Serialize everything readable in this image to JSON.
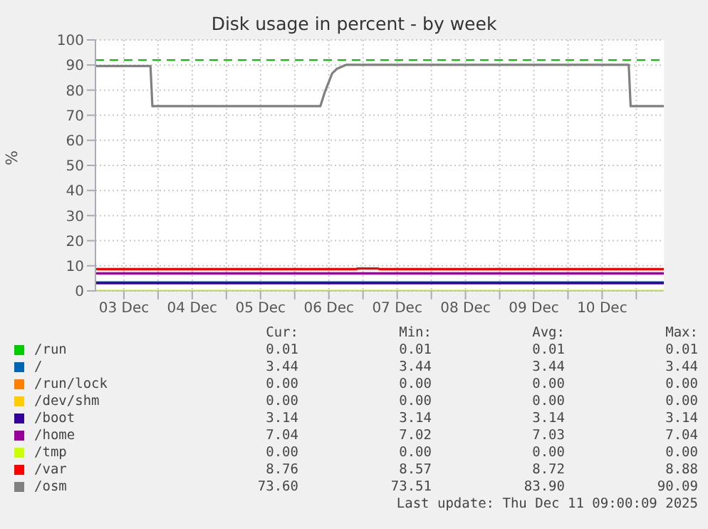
{
  "chart_data": {
    "type": "line",
    "title": "Disk usage in percent - by week",
    "ylabel": "%",
    "xlim": [
      "2025-12-03T02:00",
      "2025-12-11T09:40"
    ],
    "xticks": [
      {
        "value": "2025-12-03T12:00",
        "label": "03 Dec"
      },
      {
        "value": "2025-12-04T00:00",
        "label": null
      },
      {
        "value": "2025-12-04T12:00",
        "label": "04 Dec"
      },
      {
        "value": "2025-12-05T00:00",
        "label": null
      },
      {
        "value": "2025-12-05T12:00",
        "label": "05 Dec"
      },
      {
        "value": "2025-12-06T00:00",
        "label": null
      },
      {
        "value": "2025-12-06T12:00",
        "label": "06 Dec"
      },
      {
        "value": "2025-12-07T00:00",
        "label": null
      },
      {
        "value": "2025-12-07T12:00",
        "label": "07 Dec"
      },
      {
        "value": "2025-12-08T00:00",
        "label": null
      },
      {
        "value": "2025-12-08T12:00",
        "label": "08 Dec"
      },
      {
        "value": "2025-12-09T00:00",
        "label": null
      },
      {
        "value": "2025-12-09T12:00",
        "label": "09 Dec"
      },
      {
        "value": "2025-12-10T00:00",
        "label": null
      },
      {
        "value": "2025-12-10T12:00",
        "label": "10 Dec"
      },
      {
        "value": "2025-12-11T00:00",
        "label": null
      }
    ],
    "ylim": [
      0,
      100
    ],
    "yticks": [
      0,
      10,
      20,
      30,
      40,
      50,
      60,
      70,
      80,
      90,
      100
    ],
    "grid": true,
    "legend": "bottom",
    "line_style": "solid",
    "marker": "none",
    "ref_lines": [
      {
        "axis": "y",
        "value": 92,
        "color": "#00aa00",
        "line_style": "dashed"
      }
    ],
    "series": [
      {
        "name": "/run",
        "color": "#00cc00"
      },
      {
        "name": "/",
        "color": "#0066b3",
        "x": [
          "2025-12-03T02:00",
          "2025-12-11T09:40"
        ],
        "values": [
          3.4,
          3.4
        ]
      },
      {
        "name": "/run/lock",
        "color": "#ff8000"
      },
      {
        "name": "/dev/shm",
        "color": "#ffcc00"
      },
      {
        "name": "/boot",
        "color": "#330099",
        "x": [
          "2025-12-03T02:00",
          "2025-12-11T09:40"
        ],
        "values": [
          3.1,
          3.1
        ]
      },
      {
        "name": "/home",
        "color": "#990099",
        "x": [
          "2025-12-03T02:00",
          "2025-12-11T09:40"
        ],
        "values": [
          7,
          7
        ]
      },
      {
        "name": "/tmp",
        "color": "#ccff00",
        "x": [
          "2025-12-03T02:00",
          "2025-12-11T09:40"
        ],
        "values": [
          0,
          0
        ]
      },
      {
        "name": "/var",
        "color": "#ff0000",
        "x": [
          "2025-12-03T02:00",
          "2025-12-06T21:40",
          "2025-12-06T22:00",
          "2025-12-07T05:20",
          "2025-12-07T05:40",
          "2025-12-11T09:40"
        ],
        "values": [
          8.7,
          8.7,
          8.9,
          8.9,
          8.7,
          8.7
        ]
      },
      {
        "name": "/osm",
        "color": "#808080",
        "x": [
          "2025-12-03T02:00",
          "2025-12-03T21:20",
          "2025-12-03T22:00",
          "2025-12-06T09:00",
          "2025-12-06T10:30",
          "2025-12-06T13:10",
          "2025-12-06T14:50",
          "2025-12-06T18:10",
          "2025-12-10T21:20",
          "2025-12-10T22:00",
          "2025-12-11T09:40"
        ],
        "values": [
          89.6,
          89.6,
          73.6,
          73.6,
          79,
          86.7,
          88.5,
          90.1,
          90.1,
          73.6,
          73.6
        ]
      }
    ],
    "annotations": [
      "Cur:",
      "Min:",
      "Avg:",
      "Max:",
      "0.01",
      "0.01",
      "0.01",
      "0.01",
      "3.44",
      "3.44",
      "3.44",
      "3.44",
      "0.00",
      "0.00",
      "0.00",
      "0.00",
      "0.00",
      "0.00",
      "0.00",
      "0.00",
      "3.14",
      "3.14",
      "3.14",
      "3.14",
      "7.04",
      "7.02",
      "7.03",
      "7.04",
      "0.00",
      "0.00",
      "0.00",
      "0.00",
      "8.76",
      "8.57",
      "8.72",
      "8.88",
      "73.60",
      "73.51",
      "83.90",
      "90.09",
      "Last update: Thu Dec 11 09:00:09 2025"
    ]
  }
}
